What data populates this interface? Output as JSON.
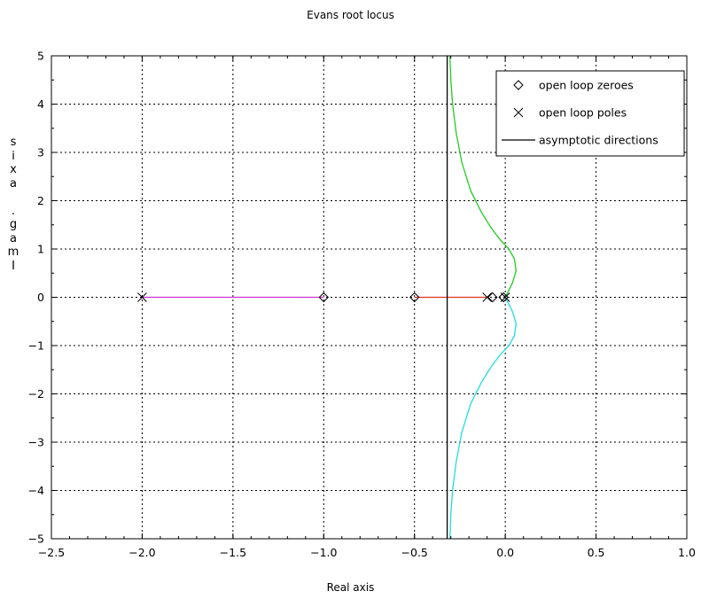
{
  "chart_data": {
    "type": "line",
    "title": "Evans root locus",
    "xlabel": "Real axis",
    "ylabel": "Imag. axis",
    "xlim": [
      -2.5,
      1.0
    ],
    "ylim": [
      -5,
      5
    ],
    "grid": true,
    "legend_position": "top-right",
    "xticks": [
      -2.5,
      -2.0,
      -1.5,
      -1.0,
      -0.5,
      0.0,
      0.5,
      1.0
    ],
    "xtick_labels": [
      "−2.5",
      "−2.0",
      "−1.5",
      "−1.0",
      "−0.5",
      "0.0",
      "0.5",
      "1.0"
    ],
    "yticks": [
      -5,
      -4,
      -3,
      -2,
      -1,
      0,
      1,
      2,
      3,
      4,
      5
    ],
    "ytick_labels": [
      "−5",
      "−4",
      "−3",
      "−2",
      "−1",
      "0",
      "1",
      "2",
      "3",
      "4",
      "5"
    ],
    "legend": [
      {
        "label": "open loop zeroes",
        "marker": "diamond"
      },
      {
        "label": "open loop poles",
        "marker": "x"
      },
      {
        "label": "asymptotic directions",
        "marker": "line"
      }
    ],
    "open_loop_zeroes": [
      {
        "x": -1.0,
        "y": 0
      },
      {
        "x": -0.5,
        "y": 0
      },
      {
        "x": -0.07,
        "y": 0
      },
      {
        "x": -0.01,
        "y": 0
      }
    ],
    "open_loop_poles": [
      {
        "x": -2.0,
        "y": 0
      },
      {
        "x": -0.1,
        "y": 0
      },
      {
        "x": 0.0,
        "y": 0
      }
    ],
    "asymptote_x": -0.32,
    "branches": [
      {
        "color": "#cc33cc",
        "x": [
          -2.0,
          -1.0
        ],
        "y": [
          0,
          0
        ]
      },
      {
        "color": "#dd3322",
        "x": [
          -0.5,
          -0.1
        ],
        "y": [
          0,
          0
        ]
      },
      {
        "color": "#22cc22",
        "x": [
          0.0,
          0.04,
          0.06,
          0.05,
          0.02,
          -0.03,
          -0.08,
          -0.13,
          -0.19,
          -0.24,
          -0.27,
          -0.29,
          -0.3,
          -0.305
        ],
        "y": [
          0.0,
          0.3,
          0.55,
          0.8,
          1.0,
          1.2,
          1.45,
          1.75,
          2.2,
          2.8,
          3.4,
          4.0,
          4.5,
          5.0
        ]
      },
      {
        "color": "#22dddd",
        "x": [
          0.0,
          0.04,
          0.06,
          0.05,
          0.02,
          -0.03,
          -0.08,
          -0.13,
          -0.19,
          -0.24,
          -0.27,
          -0.29,
          -0.3,
          -0.305
        ],
        "y": [
          0.0,
          -0.3,
          -0.55,
          -0.8,
          -1.0,
          -1.2,
          -1.45,
          -1.75,
          -2.2,
          -2.8,
          -3.4,
          -4.0,
          -4.5,
          -5.0
        ]
      }
    ]
  }
}
